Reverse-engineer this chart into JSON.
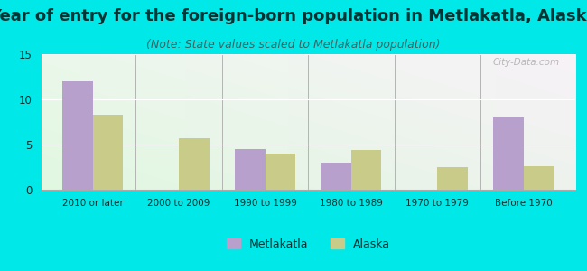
{
  "title": "Year of entry for the foreign-born population in Metlakatla, Alaska",
  "subtitle": "(Note: State values scaled to Metlakatla population)",
  "categories": [
    "2010 or later",
    "2000 to 2009",
    "1990 to 1999",
    "1980 to 1989",
    "1970 to 1979",
    "Before 1970"
  ],
  "metlakatla_values": [
    12,
    0,
    4.5,
    3,
    0,
    8
  ],
  "alaska_values": [
    8.3,
    5.7,
    4.0,
    4.4,
    2.5,
    2.6
  ],
  "metlakatla_color": "#b8a0cc",
  "alaska_color": "#c8cc88",
  "background_color": "#00e8e8",
  "ylim": [
    0,
    15
  ],
  "yticks": [
    0,
    5,
    10,
    15
  ],
  "title_fontsize": 13,
  "subtitle_fontsize": 9,
  "title_color": "#003333",
  "subtitle_color": "#336666",
  "legend_labels": [
    "Metlakatla",
    "Alaska"
  ],
  "bar_width": 0.35
}
